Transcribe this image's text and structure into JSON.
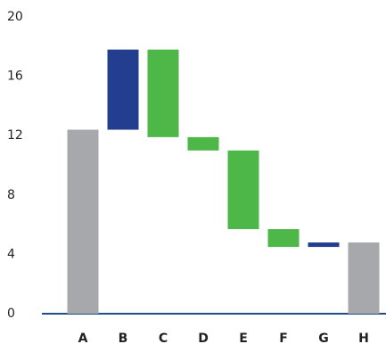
{
  "chart_data": {
    "type": "waterfall",
    "categories": [
      "A",
      "B",
      "C",
      "D",
      "E",
      "F",
      "G",
      "H"
    ],
    "values": [
      12.4,
      5.4,
      -5.9,
      -0.9,
      -5.3,
      -1.2,
      0.3,
      4.8
    ],
    "totals": [
      true,
      false,
      false,
      false,
      false,
      false,
      false,
      true
    ],
    "colors": {
      "total": "#a7a8ab",
      "increase": "#233e8f",
      "decrease": "#4db848"
    },
    "ylim": [
      0,
      20
    ],
    "yticks": [
      0,
      4,
      8,
      12,
      16,
      20
    ],
    "grid": false
  }
}
